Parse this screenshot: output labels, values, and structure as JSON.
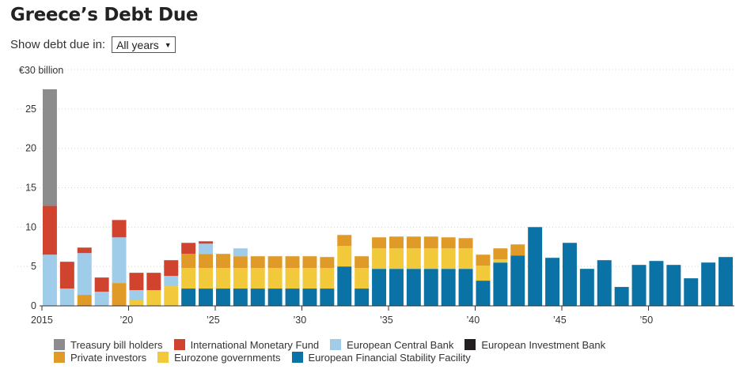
{
  "header": {
    "title": "Greece’s Debt Due"
  },
  "controls": {
    "label": "Show debt due in:",
    "select_value": "All years"
  },
  "chart_data": {
    "type": "bar",
    "stacked": true,
    "title": "Greece’s Debt Due",
    "ylabel": "€30 billion",
    "ylim": [
      0,
      30
    ],
    "yticks": [
      0,
      5,
      10,
      15,
      20,
      25
    ],
    "xtick_labels": [
      {
        "year": 2015,
        "label": "2015"
      },
      {
        "year": 2020,
        "label": "’20"
      },
      {
        "year": 2025,
        "label": "’25"
      },
      {
        "year": 2030,
        "label": "’30"
      },
      {
        "year": 2035,
        "label": "’35"
      },
      {
        "year": 2040,
        "label": "’40"
      },
      {
        "year": 2045,
        "label": "’45"
      },
      {
        "year": 2050,
        "label": "’50"
      }
    ],
    "grid": true,
    "legend_position": "bottom",
    "categories": [
      2015,
      2016,
      2017,
      2018,
      2019,
      2020,
      2021,
      2022,
      2023,
      2024,
      2025,
      2026,
      2027,
      2028,
      2029,
      2030,
      2031,
      2032,
      2033,
      2034,
      2035,
      2036,
      2037,
      2038,
      2039,
      2040,
      2041,
      2042,
      2043,
      2044,
      2045,
      2046,
      2047,
      2048,
      2049,
      2050,
      2051,
      2052,
      2053,
      2054
    ],
    "series": [
      {
        "name": "European Financial Stability Facility",
        "color": "#0a72a5",
        "values": [
          0,
          0,
          0,
          0,
          0,
          0,
          0,
          0,
          2.2,
          2.2,
          2.2,
          2.2,
          2.2,
          2.2,
          2.2,
          2.2,
          2.2,
          5.0,
          2.2,
          4.7,
          4.7,
          4.7,
          4.7,
          4.7,
          4.7,
          3.2,
          5.5,
          6.4,
          10.0,
          6.1,
          8.0,
          4.7,
          5.8,
          2.4,
          5.2,
          5.7,
          5.2,
          3.5,
          5.5,
          6.2
        ]
      },
      {
        "name": "Eurozone governments",
        "color": "#f2c93a",
        "values": [
          0,
          0,
          0,
          0,
          0,
          0.7,
          2.0,
          2.5,
          2.6,
          2.6,
          2.6,
          2.6,
          2.6,
          2.6,
          2.6,
          2.6,
          2.6,
          2.6,
          2.6,
          2.6,
          2.6,
          2.6,
          2.6,
          2.6,
          2.6,
          1.9,
          0.4,
          0,
          0,
          0,
          0,
          0,
          0,
          0,
          0,
          0,
          0,
          0,
          0,
          0
        ]
      },
      {
        "name": "Private investors",
        "color": "#e09a28",
        "values": [
          0,
          0,
          1.4,
          0,
          2.9,
          0,
          0,
          0,
          1.8,
          1.8,
          1.8,
          1.5,
          1.5,
          1.5,
          1.5,
          1.5,
          1.4,
          1.4,
          1.5,
          1.4,
          1.5,
          1.5,
          1.5,
          1.4,
          1.3,
          1.4,
          1.4,
          1.4,
          0,
          0,
          0,
          0,
          0,
          0,
          0,
          0,
          0,
          0,
          0,
          0
        ]
      },
      {
        "name": "European Central Bank",
        "color": "#9ecce9",
        "values": [
          6.5,
          2.2,
          5.3,
          1.8,
          5.8,
          1.3,
          0,
          1.3,
          0,
          1.3,
          0,
          1.0,
          0,
          0,
          0,
          0,
          0,
          0,
          0,
          0,
          0,
          0,
          0,
          0,
          0,
          0,
          0,
          0,
          0,
          0,
          0,
          0,
          0,
          0,
          0,
          0,
          0,
          0,
          0,
          0
        ]
      },
      {
        "name": "European Investment Bank",
        "color": "#231f20",
        "values": [
          0,
          0,
          0,
          0,
          0,
          0,
          0,
          0,
          0,
          0,
          0,
          0,
          0,
          0,
          0,
          0,
          0,
          0,
          0,
          0,
          0,
          0,
          0,
          0,
          0,
          0,
          0,
          0,
          0,
          0,
          0,
          0,
          0,
          0,
          0,
          0,
          0,
          0,
          0,
          0
        ]
      },
      {
        "name": "International Monetary Fund",
        "color": "#d0442f",
        "values": [
          6.2,
          3.4,
          0.7,
          1.8,
          2.2,
          2.2,
          2.2,
          2.0,
          1.4,
          0.3,
          0,
          0,
          0,
          0,
          0,
          0,
          0,
          0,
          0,
          0,
          0,
          0,
          0,
          0,
          0,
          0,
          0,
          0,
          0,
          0,
          0,
          0,
          0,
          0,
          0,
          0,
          0,
          0,
          0,
          0
        ]
      },
      {
        "name": "Treasury bill holders",
        "color": "#8c8c8c",
        "values": [
          14.8,
          0,
          0,
          0,
          0,
          0,
          0,
          0,
          0,
          0,
          0,
          0,
          0,
          0,
          0,
          0,
          0,
          0,
          0,
          0,
          0,
          0,
          0,
          0,
          0,
          0,
          0,
          0,
          0,
          0,
          0,
          0,
          0,
          0,
          0,
          0,
          0,
          0,
          0,
          0
        ]
      }
    ],
    "legend_rows": [
      [
        "Treasury bill holders",
        "International Monetary Fund",
        "European Central Bank",
        "European Investment Bank"
      ],
      [
        "Private investors",
        "Eurozone governments",
        "European Financial Stability Facility"
      ]
    ]
  }
}
